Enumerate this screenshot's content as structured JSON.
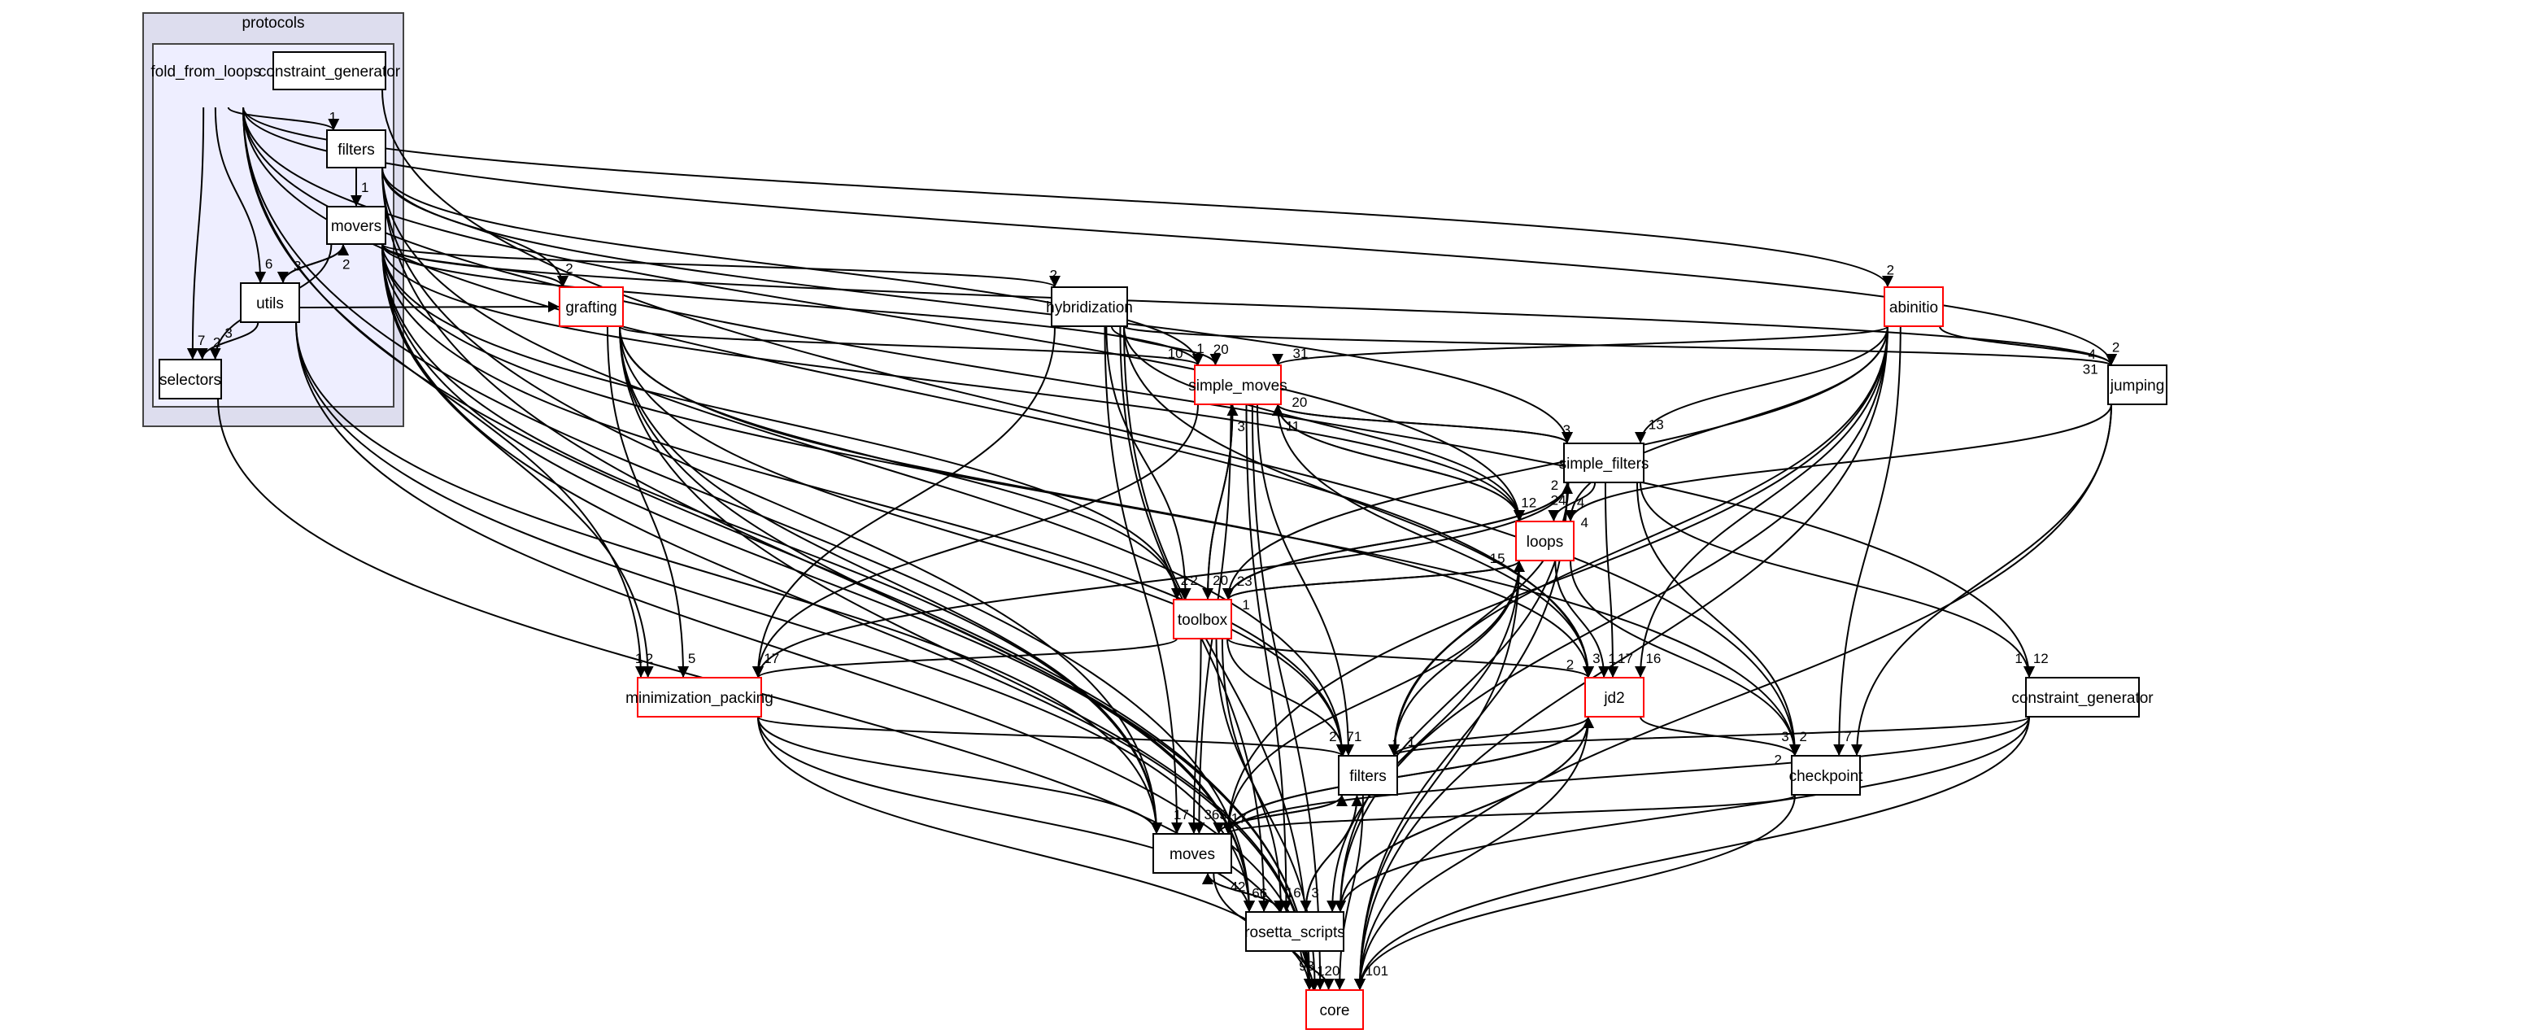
{
  "clusters": [
    {
      "id": "protocols",
      "label": "protocols",
      "fill": "#ddddee"
    },
    {
      "id": "fold_from_loops",
      "label": "fold_from_loops",
      "fill": "#eeeeff"
    }
  ],
  "nodes": [
    {
      "id": "ffl_constraint_generator",
      "label": "constraint_generator",
      "red": false
    },
    {
      "id": "ffl_filters",
      "label": "filters",
      "red": false
    },
    {
      "id": "ffl_movers",
      "label": "movers",
      "red": false
    },
    {
      "id": "ffl_utils",
      "label": "utils",
      "red": false
    },
    {
      "id": "ffl_selectors",
      "label": "selectors",
      "red": false
    },
    {
      "id": "grafting",
      "label": "grafting",
      "red": true
    },
    {
      "id": "hybridization",
      "label": "hybridization",
      "red": false
    },
    {
      "id": "abinitio",
      "label": "abinitio",
      "red": true
    },
    {
      "id": "simple_moves",
      "label": "simple_moves",
      "red": true
    },
    {
      "id": "jumping",
      "label": "jumping",
      "red": false
    },
    {
      "id": "simple_filters",
      "label": "simple_filters",
      "red": false
    },
    {
      "id": "loops",
      "label": "loops",
      "red": true
    },
    {
      "id": "toolbox",
      "label": "toolbox",
      "red": true
    },
    {
      "id": "minimization_packing",
      "label": "minimization_packing",
      "red": true
    },
    {
      "id": "jd2",
      "label": "jd2",
      "red": true
    },
    {
      "id": "constraint_generator",
      "label": "constraint_generator",
      "red": false
    },
    {
      "id": "filters",
      "label": "filters",
      "red": false
    },
    {
      "id": "checkpoint",
      "label": "checkpoint",
      "red": false
    },
    {
      "id": "moves",
      "label": "moves",
      "red": false
    },
    {
      "id": "rosetta_scripts",
      "label": "rosetta_scripts",
      "red": false
    },
    {
      "id": "core",
      "label": "core",
      "red": true
    }
  ],
  "edges": [
    [
      "fold_from_loops",
      "ffl_filters",
      "1"
    ],
    [
      "ffl_filters",
      "ffl_movers",
      "1"
    ],
    [
      "fold_from_loops",
      "ffl_utils",
      "6"
    ],
    [
      "fold_from_loops",
      "ffl_selectors",
      "7"
    ],
    [
      "ffl_movers",
      "ffl_utils",
      "3"
    ],
    [
      "ffl_utils",
      "ffl_movers",
      "2"
    ],
    [
      "ffl_utils",
      "ffl_selectors",
      "2"
    ],
    [
      "ffl_movers",
      "ffl_selectors",
      "3"
    ],
    [
      "fold_from_loops",
      "minimization_packing",
      "2"
    ],
    [
      "fold_from_loops",
      "abinitio",
      "2"
    ],
    [
      "fold_from_loops",
      "jumping",
      "2"
    ],
    [
      "fold_from_loops",
      "core",
      ""
    ],
    [
      "fold_from_loops",
      "jd2",
      ""
    ],
    [
      "fold_from_loops",
      "loops",
      ""
    ],
    [
      "fold_from_loops",
      "constraint_generator",
      "12"
    ],
    [
      "fold_from_loops",
      "rosetta_scripts",
      ""
    ],
    [
      "ffl_constraint_generator",
      "checkpoint",
      "2"
    ],
    [
      "ffl_filters",
      "grafting",
      "2"
    ],
    [
      "ffl_filters",
      "simple_filters",
      ""
    ],
    [
      "ffl_filters",
      "simple_moves",
      ""
    ],
    [
      "ffl_filters",
      "filters",
      "71"
    ],
    [
      "ffl_filters",
      "core",
      ""
    ],
    [
      "ffl_filters",
      "moves",
      ""
    ],
    [
      "ffl_movers",
      "grafting",
      ""
    ],
    [
      "ffl_movers",
      "hybridization",
      "2"
    ],
    [
      "ffl_movers",
      "simple_moves",
      "1"
    ],
    [
      "ffl_movers",
      "toolbox",
      "2"
    ],
    [
      "ffl_movers",
      "loops",
      ""
    ],
    [
      "ffl_movers",
      "minimization_packing",
      "1"
    ],
    [
      "ffl_movers",
      "moves",
      ""
    ],
    [
      "ffl_movers",
      "core",
      ""
    ],
    [
      "ffl_movers",
      "jumping",
      ""
    ],
    [
      "ffl_movers",
      "checkpoint",
      ""
    ],
    [
      "ffl_movers",
      "filters",
      ""
    ],
    [
      "ffl_movers",
      "rosetta_scripts",
      ""
    ],
    [
      "ffl_utils",
      "grafting",
      ""
    ],
    [
      "ffl_utils",
      "core",
      ""
    ],
    [
      "ffl_utils",
      "moves",
      ""
    ],
    [
      "ffl_utils",
      "rosetta_scripts",
      ""
    ],
    [
      "ffl_selectors",
      "core",
      ""
    ],
    [
      "grafting",
      "simple_moves",
      "10"
    ],
    [
      "grafting",
      "minimization_packing",
      "5"
    ],
    [
      "grafting",
      "toolbox",
      ""
    ],
    [
      "grafting",
      "moves",
      ""
    ],
    [
      "grafting",
      "core",
      ""
    ],
    [
      "grafting",
      "rosetta_scripts",
      ""
    ],
    [
      "grafting",
      "filters",
      ""
    ],
    [
      "grafting",
      "jd2",
      ""
    ],
    [
      "hybridization",
      "simple_moves",
      "20"
    ],
    [
      "hybridization",
      "toolbox",
      "2"
    ],
    [
      "hybridization",
      "jumping",
      "4"
    ],
    [
      "hybridization",
      "loops",
      ""
    ],
    [
      "hybridization",
      "minimization_packing",
      ""
    ],
    [
      "hybridization",
      "moves",
      ""
    ],
    [
      "hybridization",
      "core",
      ""
    ],
    [
      "hybridization",
      "rosetta_scripts",
      ""
    ],
    [
      "hybridization",
      "jd2",
      ""
    ],
    [
      "abinitio",
      "simple_moves",
      "31"
    ],
    [
      "abinitio",
      "jumping",
      "31"
    ],
    [
      "abinitio",
      "simple_filters",
      "13"
    ],
    [
      "abinitio",
      "loops",
      "4"
    ],
    [
      "abinitio",
      "jd2",
      "16"
    ],
    [
      "abinitio",
      "checkpoint",
      "7"
    ],
    [
      "abinitio",
      "toolbox",
      ""
    ],
    [
      "abinitio",
      "filters",
      ""
    ],
    [
      "abinitio",
      "moves",
      ""
    ],
    [
      "abinitio",
      "core",
      ""
    ],
    [
      "abinitio",
      "rosetta_scripts",
      ""
    ],
    [
      "simple_moves",
      "simple_filters",
      "3"
    ],
    [
      "simple_moves",
      "loops",
      "12"
    ],
    [
      "simple_moves",
      "toolbox",
      "20"
    ],
    [
      "simple_moves",
      "filters",
      ""
    ],
    [
      "simple_moves",
      "moves",
      "363"
    ],
    [
      "simple_moves",
      "core",
      ""
    ],
    [
      "simple_moves",
      "rosetta_scripts",
      ""
    ],
    [
      "simple_moves",
      "minimization_packing",
      "17"
    ],
    [
      "simple_moves",
      "jd2",
      "3"
    ],
    [
      "simple_filters",
      "simple_moves",
      "20"
    ],
    [
      "simple_filters",
      "loops",
      "24"
    ],
    [
      "simple_filters",
      "toolbox",
      "23"
    ],
    [
      "simple_filters",
      "jd2",
      "17"
    ],
    [
      "simple_filters",
      "filters",
      ""
    ],
    [
      "simple_filters",
      "constraint_generator",
      "1"
    ],
    [
      "simple_filters",
      "core",
      ""
    ],
    [
      "simple_filters",
      "rosetta_scripts",
      ""
    ],
    [
      "simple_filters",
      "checkpoint",
      ""
    ],
    [
      "simple_filters",
      "minimization_packing",
      ""
    ],
    [
      "loops",
      "simple_moves",
      "11"
    ],
    [
      "loops",
      "toolbox",
      "1"
    ],
    [
      "loops",
      "jd2",
      "1"
    ],
    [
      "loops",
      "filters",
      ""
    ],
    [
      "loops",
      "moves",
      ""
    ],
    [
      "loops",
      "core",
      ""
    ],
    [
      "loops",
      "rosetta_scripts",
      ""
    ],
    [
      "loops",
      "checkpoint",
      "3"
    ],
    [
      "toolbox",
      "simple_moves",
      "3"
    ],
    [
      "toolbox",
      "loops",
      "15"
    ],
    [
      "toolbox",
      "simple_filters",
      "2"
    ],
    [
      "toolbox",
      "jd2",
      "2"
    ],
    [
      "toolbox",
      "filters",
      "2"
    ],
    [
      "toolbox",
      "moves",
      "17"
    ],
    [
      "toolbox",
      "core",
      ""
    ],
    [
      "toolbox",
      "rosetta_scripts",
      "16"
    ],
    [
      "toolbox",
      "minimization_packing",
      ""
    ],
    [
      "jumping",
      "loops",
      "4"
    ],
    [
      "jumping",
      "checkpoint",
      ""
    ],
    [
      "jumping",
      "core",
      ""
    ],
    [
      "jd2",
      "filters",
      "1"
    ],
    [
      "jd2",
      "moves",
      ""
    ],
    [
      "jd2",
      "core",
      "101"
    ],
    [
      "jd2",
      "rosetta_scripts",
      ""
    ],
    [
      "jd2",
      "checkpoint",
      "2"
    ],
    [
      "minimization_packing",
      "filters",
      ""
    ],
    [
      "minimization_packing",
      "moves",
      ""
    ],
    [
      "minimization_packing",
      "core",
      ""
    ],
    [
      "minimization_packing",
      "rosetta_scripts",
      "66"
    ],
    [
      "constraint_generator",
      "filters",
      "1"
    ],
    [
      "constraint_generator",
      "moves",
      ""
    ],
    [
      "constraint_generator",
      "core",
      ""
    ],
    [
      "constraint_generator",
      "rosetta_scripts",
      ""
    ],
    [
      "checkpoint",
      "moves",
      ""
    ],
    [
      "checkpoint",
      "core",
      ""
    ],
    [
      "filters",
      "moves",
      "17"
    ],
    [
      "filters",
      "core",
      ""
    ],
    [
      "filters",
      "rosetta_scripts",
      "3"
    ],
    [
      "moves",
      "filters",
      ""
    ],
    [
      "moves",
      "jd2",
      ""
    ],
    [
      "moves",
      "rosetta_scripts",
      "42"
    ],
    [
      "moves",
      "core",
      "120"
    ],
    [
      "rosetta_scripts",
      "moves",
      ""
    ],
    [
      "rosetta_scripts",
      "filters",
      ""
    ],
    [
      "rosetta_scripts",
      "jd2",
      ""
    ],
    [
      "rosetta_scripts",
      "core",
      "93"
    ]
  ],
  "colors": {
    "node_border": "#000000",
    "highlight_border": "#ff0000",
    "edge": "#000000"
  }
}
